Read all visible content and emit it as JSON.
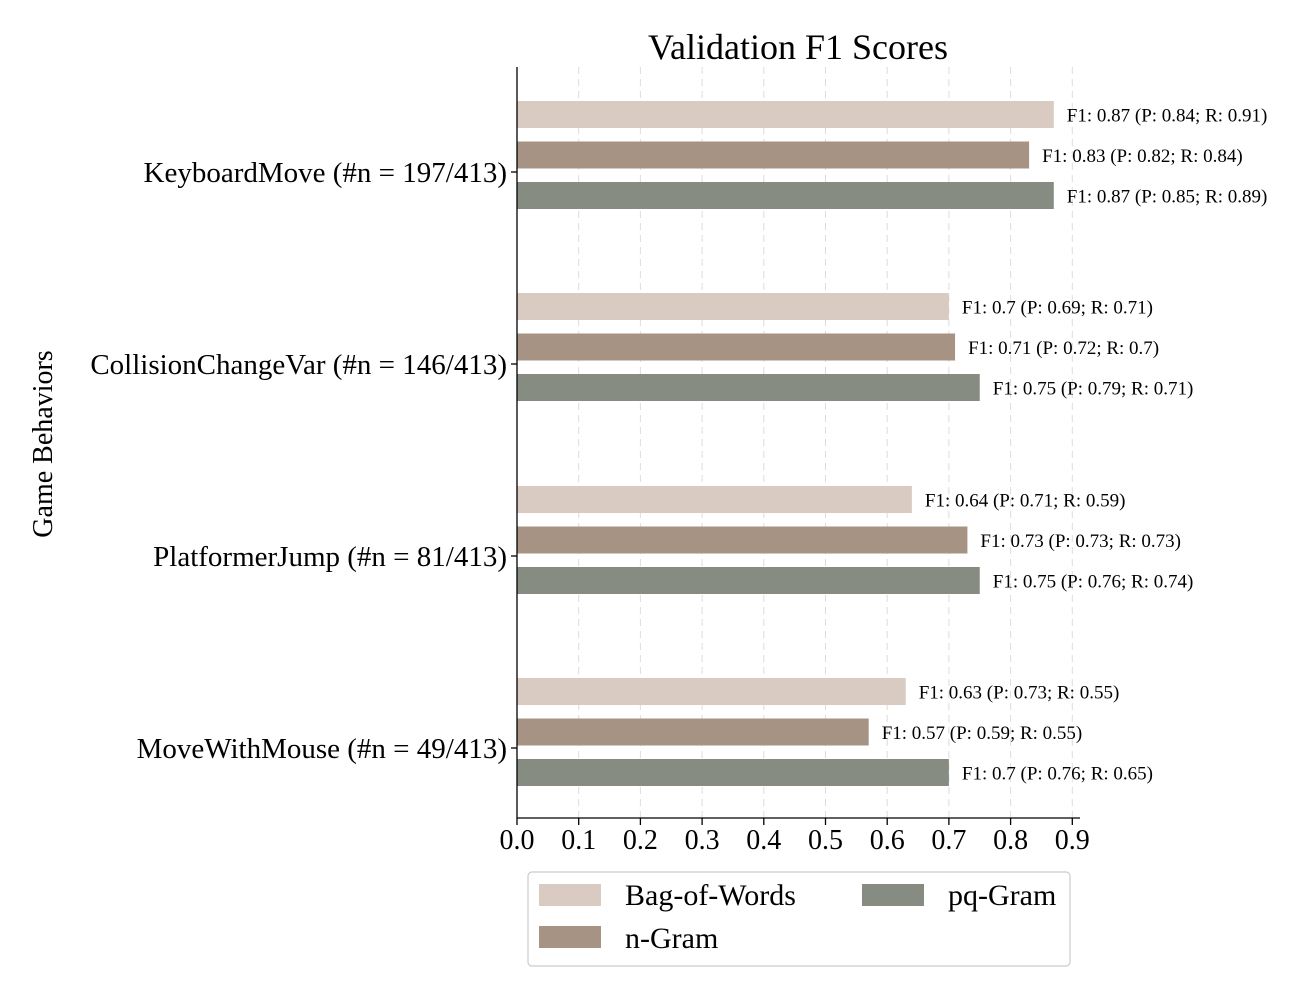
{
  "chart_data": {
    "type": "bar",
    "orientation": "horizontal",
    "title": "Validation F1 Scores",
    "xlabel": "",
    "ylabel": "Game Behaviors",
    "xlim": [
      0,
      0.9
    ],
    "xticks": [
      "0.0",
      "0.1",
      "0.2",
      "0.3",
      "0.4",
      "0.5",
      "0.6",
      "0.7",
      "0.8",
      "0.9"
    ],
    "grid": "vertical dashed",
    "legend_position": "bottom-center",
    "categories": [
      "KeyboardMove (#n = 197/413)",
      "CollisionChangeVar (#n = 146/413)",
      "PlatformerJump (#n = 81/413)",
      "MoveWithMouse (#n = 49/413)"
    ],
    "series": [
      {
        "name": "Bag-of-Words",
        "color": "#d9cbc2",
        "values": [
          0.87,
          0.7,
          0.64,
          0.63
        ],
        "labels": [
          "F1: 0.87 (P: 0.84; R: 0.91)",
          "F1: 0.7 (P: 0.69; R: 0.71)",
          "F1: 0.64 (P: 0.71; R: 0.59)",
          "F1: 0.63 (P: 0.73; R: 0.55)"
        ]
      },
      {
        "name": "n-Gram",
        "color": "#a69383",
        "values": [
          0.83,
          0.71,
          0.73,
          0.57
        ],
        "labels": [
          "F1: 0.83 (P: 0.82; R: 0.84)",
          "F1: 0.71 (P: 0.72; R: 0.7)",
          "F1: 0.73 (P: 0.73; R: 0.73)",
          "F1: 0.57 (P: 0.59; R: 0.55)"
        ]
      },
      {
        "name": "pq-Gram",
        "color": "#878c83",
        "values": [
          0.87,
          0.75,
          0.75,
          0.7
        ],
        "labels": [
          "F1: 0.87 (P: 0.85; R: 0.89)",
          "F1: 0.75 (P: 0.79; R: 0.71)",
          "F1: 0.75 (P: 0.76; R: 0.74)",
          "F1: 0.7 (P: 0.76; R: 0.65)"
        ]
      }
    ]
  }
}
